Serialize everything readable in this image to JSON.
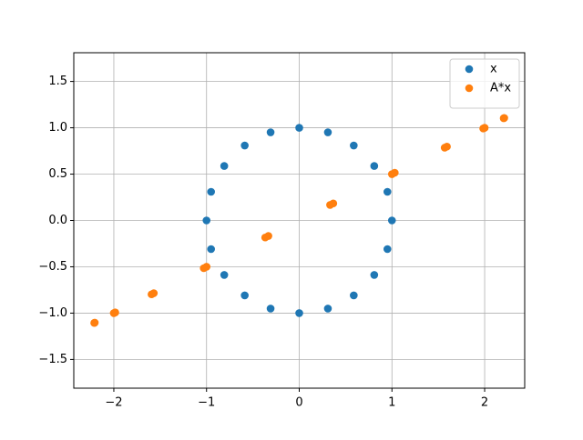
{
  "chart_data": {
    "type": "scatter",
    "series": [
      {
        "name": "x",
        "color": "#1f77b4",
        "x": [
          1,
          0.951,
          0.809,
          0.588,
          0.309,
          0,
          -0.309,
          -0.588,
          -0.809,
          -0.951,
          -1,
          -0.951,
          -0.809,
          -0.588,
          -0.309,
          0,
          0.309,
          0.588,
          0.809,
          0.951
        ],
        "y": [
          0,
          0.309,
          0.588,
          0.809,
          0.951,
          1,
          0.951,
          0.809,
          0.588,
          0.309,
          0,
          -0.309,
          -0.588,
          -0.809,
          -0.951,
          -1,
          -0.951,
          -0.809,
          -0.588,
          -0.309
        ]
      },
      {
        "name": "A*x",
        "color": "#ff7f0e",
        "x": [
          1,
          1.569,
          1.985,
          2.206,
          2.211,
          2,
          1.593,
          1.03,
          0.367,
          -0.333,
          -1,
          -1.569,
          -1.985,
          -2.206,
          -2.211,
          -2,
          -1.593,
          -1.03,
          -0.367,
          0.333
        ],
        "y": [
          0.5,
          0.785,
          0.993,
          1.103,
          1.106,
          1,
          0.797,
          0.515,
          0.184,
          -0.167,
          -0.5,
          -0.785,
          -0.993,
          -1.103,
          -1.106,
          -1,
          -0.797,
          -0.515,
          -0.184,
          0.167
        ]
      }
    ],
    "xlim": [
      -2.432,
      2.432
    ],
    "ylim": [
      -1.81,
      1.81
    ],
    "xticks": [
      {
        "value": -2,
        "label": "−2"
      },
      {
        "value": -1,
        "label": "−1"
      },
      0,
      1,
      2
    ],
    "yticks": [
      {
        "value": -1.5,
        "label": "−1.5"
      },
      {
        "value": -1,
        "label": "−1.0"
      },
      {
        "value": -0.5,
        "label": "−0.5"
      },
      {
        "value": 0,
        "label": "0.0"
      },
      {
        "value": 0.5,
        "label": "0.5"
      },
      {
        "value": 1,
        "label": "1.0"
      },
      {
        "value": 1.5,
        "label": "1.5"
      }
    ],
    "grid": true,
    "legend": "upper-right"
  }
}
